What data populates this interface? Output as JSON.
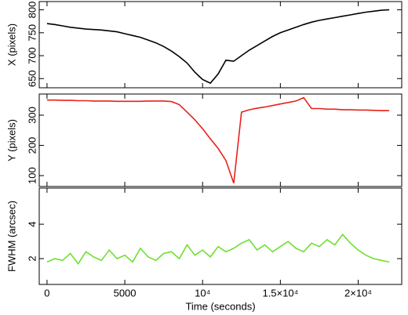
{
  "chart_data": [
    {
      "type": "line",
      "ylabel": "X (pixels)",
      "x": [
        0,
        500,
        1000,
        1500,
        2000,
        2500,
        3000,
        3500,
        4000,
        4500,
        5000,
        5500,
        6000,
        6500,
        7000,
        7500,
        8000,
        8500,
        9000,
        9500,
        10000,
        10500,
        11000,
        11500,
        12000,
        12500,
        13000,
        13500,
        14000,
        14500,
        15000,
        15500,
        16000,
        16500,
        17000,
        17500,
        18000,
        18500,
        19000,
        19500,
        20000,
        20500,
        21000,
        21500,
        22000
      ],
      "series": [
        {
          "color": "#000000",
          "values": [
            770,
            768,
            765,
            762,
            760,
            758,
            757,
            756,
            754,
            752,
            748,
            744,
            740,
            734,
            728,
            720,
            710,
            698,
            684,
            664,
            648,
            640,
            660,
            690,
            688,
            700,
            712,
            722,
            732,
            742,
            750,
            756,
            762,
            768,
            773,
            777,
            780,
            783,
            786,
            789,
            792,
            795,
            797,
            799,
            800
          ]
        }
      ],
      "xlim": [
        -500,
        22800
      ],
      "ylim": [
        630,
        818
      ],
      "yticks": [
        650,
        700,
        750,
        800
      ]
    },
    {
      "type": "line",
      "ylabel": "Y (pixels)",
      "x": [
        0,
        500,
        1000,
        1500,
        2000,
        2500,
        3000,
        3500,
        4000,
        4500,
        5000,
        5500,
        6000,
        6500,
        7000,
        7500,
        8000,
        8500,
        9000,
        9500,
        10000,
        10500,
        11000,
        11500,
        12000,
        12500,
        13000,
        13500,
        14000,
        14500,
        15000,
        15500,
        16000,
        16500,
        17000,
        17500,
        18000,
        18500,
        19000,
        19500,
        20000,
        20500,
        21000,
        21500,
        22000
      ],
      "series": [
        {
          "color": "#e8211a",
          "values": [
            350,
            350,
            349,
            349,
            348,
            348,
            347,
            347,
            347,
            346,
            346,
            346,
            346,
            347,
            347,
            347,
            345,
            335,
            310,
            285,
            255,
            222,
            190,
            150,
            75,
            310,
            318,
            323,
            327,
            332,
            337,
            342,
            347,
            358,
            322,
            322,
            320,
            320,
            318,
            318,
            317,
            317,
            316,
            315,
            315
          ]
        }
      ],
      "xlim": [
        -500,
        22800
      ],
      "ylim": [
        64,
        370
      ],
      "yticks": [
        100,
        200,
        300
      ]
    },
    {
      "type": "line",
      "ylabel": "FWHM (arcsec)",
      "xlabel": "Time (seconds)",
      "x": [
        0,
        500,
        1000,
        1500,
        2000,
        2500,
        3000,
        3500,
        4000,
        4500,
        5000,
        5500,
        6000,
        6500,
        7000,
        7500,
        8000,
        8500,
        9000,
        9500,
        10000,
        10500,
        11000,
        11500,
        12000,
        12500,
        13000,
        13500,
        14000,
        14500,
        15000,
        15500,
        16000,
        16500,
        17000,
        17500,
        18000,
        18500,
        19000,
        19500,
        20000,
        20500,
        21000,
        21500,
        22000
      ],
      "series": [
        {
          "color": "#6ee030",
          "values": [
            1.8,
            2.0,
            1.9,
            2.3,
            1.7,
            2.4,
            2.1,
            1.9,
            2.5,
            2.0,
            2.2,
            1.8,
            2.6,
            2.1,
            1.9,
            2.3,
            2.4,
            2.0,
            2.8,
            2.2,
            2.5,
            2.1,
            2.7,
            2.4,
            2.6,
            2.9,
            3.1,
            2.5,
            2.8,
            2.4,
            2.7,
            3.0,
            2.6,
            2.4,
            2.9,
            2.7,
            3.1,
            2.8,
            3.4,
            2.9,
            2.5,
            2.2,
            2.0,
            1.9,
            1.8
          ]
        }
      ],
      "xlim": [
        -500,
        22800
      ],
      "ylim": [
        0.5,
        6.1
      ],
      "yticks": [
        2,
        4
      ],
      "xticks": [
        0,
        5000,
        {
          "value": 10000,
          "label": "10⁴"
        },
        {
          "value": 15000,
          "label": "1.5×10⁴"
        },
        {
          "value": 20000,
          "label": "2×10⁴"
        }
      ]
    }
  ]
}
